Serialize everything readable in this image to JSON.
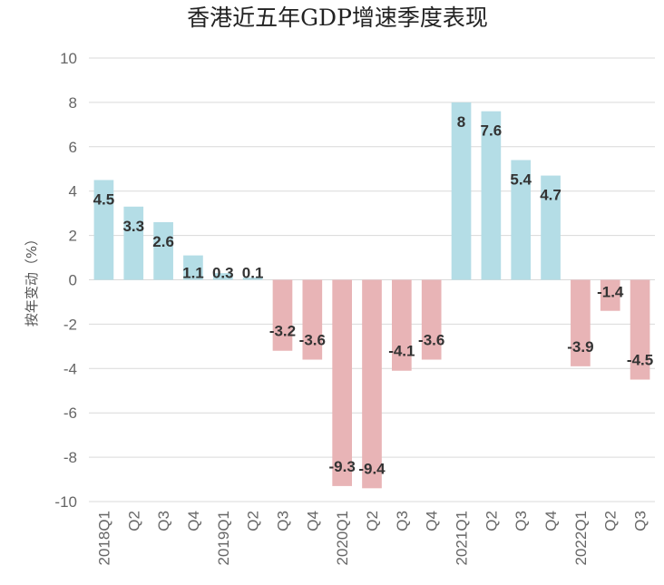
{
  "chart_data": {
    "type": "bar",
    "title": "香港近五年GDP增速季度表现",
    "xlabel": "",
    "ylabel": "按年变动（%）",
    "ylim": [
      -10,
      10
    ],
    "ytick_step": 2,
    "yticks": [
      "10",
      "8",
      "6",
      "4",
      "2",
      "0",
      "-2",
      "-4",
      "-6",
      "-8",
      "-10"
    ],
    "grid": true,
    "categories": [
      "2018Q1",
      "Q2",
      "Q3",
      "Q4",
      "2019Q1",
      "Q2",
      "Q3",
      "Q4",
      "2020Q1",
      "Q2",
      "Q3",
      "Q4",
      "2021Q1",
      "Q2",
      "Q3",
      "Q4",
      "2022Q1",
      "Q2",
      "Q3"
    ],
    "values": [
      4.5,
      3.3,
      2.6,
      1.1,
      0.3,
      0.1,
      -3.2,
      -3.6,
      -9.3,
      -9.4,
      -4.1,
      -3.6,
      8,
      7.6,
      5.4,
      4.7,
      -3.9,
      -1.4,
      -4.5
    ],
    "data_labels": [
      "4.5",
      "3.3",
      "2.6",
      "1.1",
      "0.3",
      "0.1",
      "-3.2",
      "-3.6",
      "-9.3",
      "-9.4",
      "-4.1",
      "-3.6",
      "8",
      "7.6",
      "5.4",
      "4.7",
      "-3.9",
      "-1.4",
      "-4.5"
    ],
    "colors": {
      "positive": "#b4dde6",
      "negative": "#e8b4b6"
    }
  }
}
